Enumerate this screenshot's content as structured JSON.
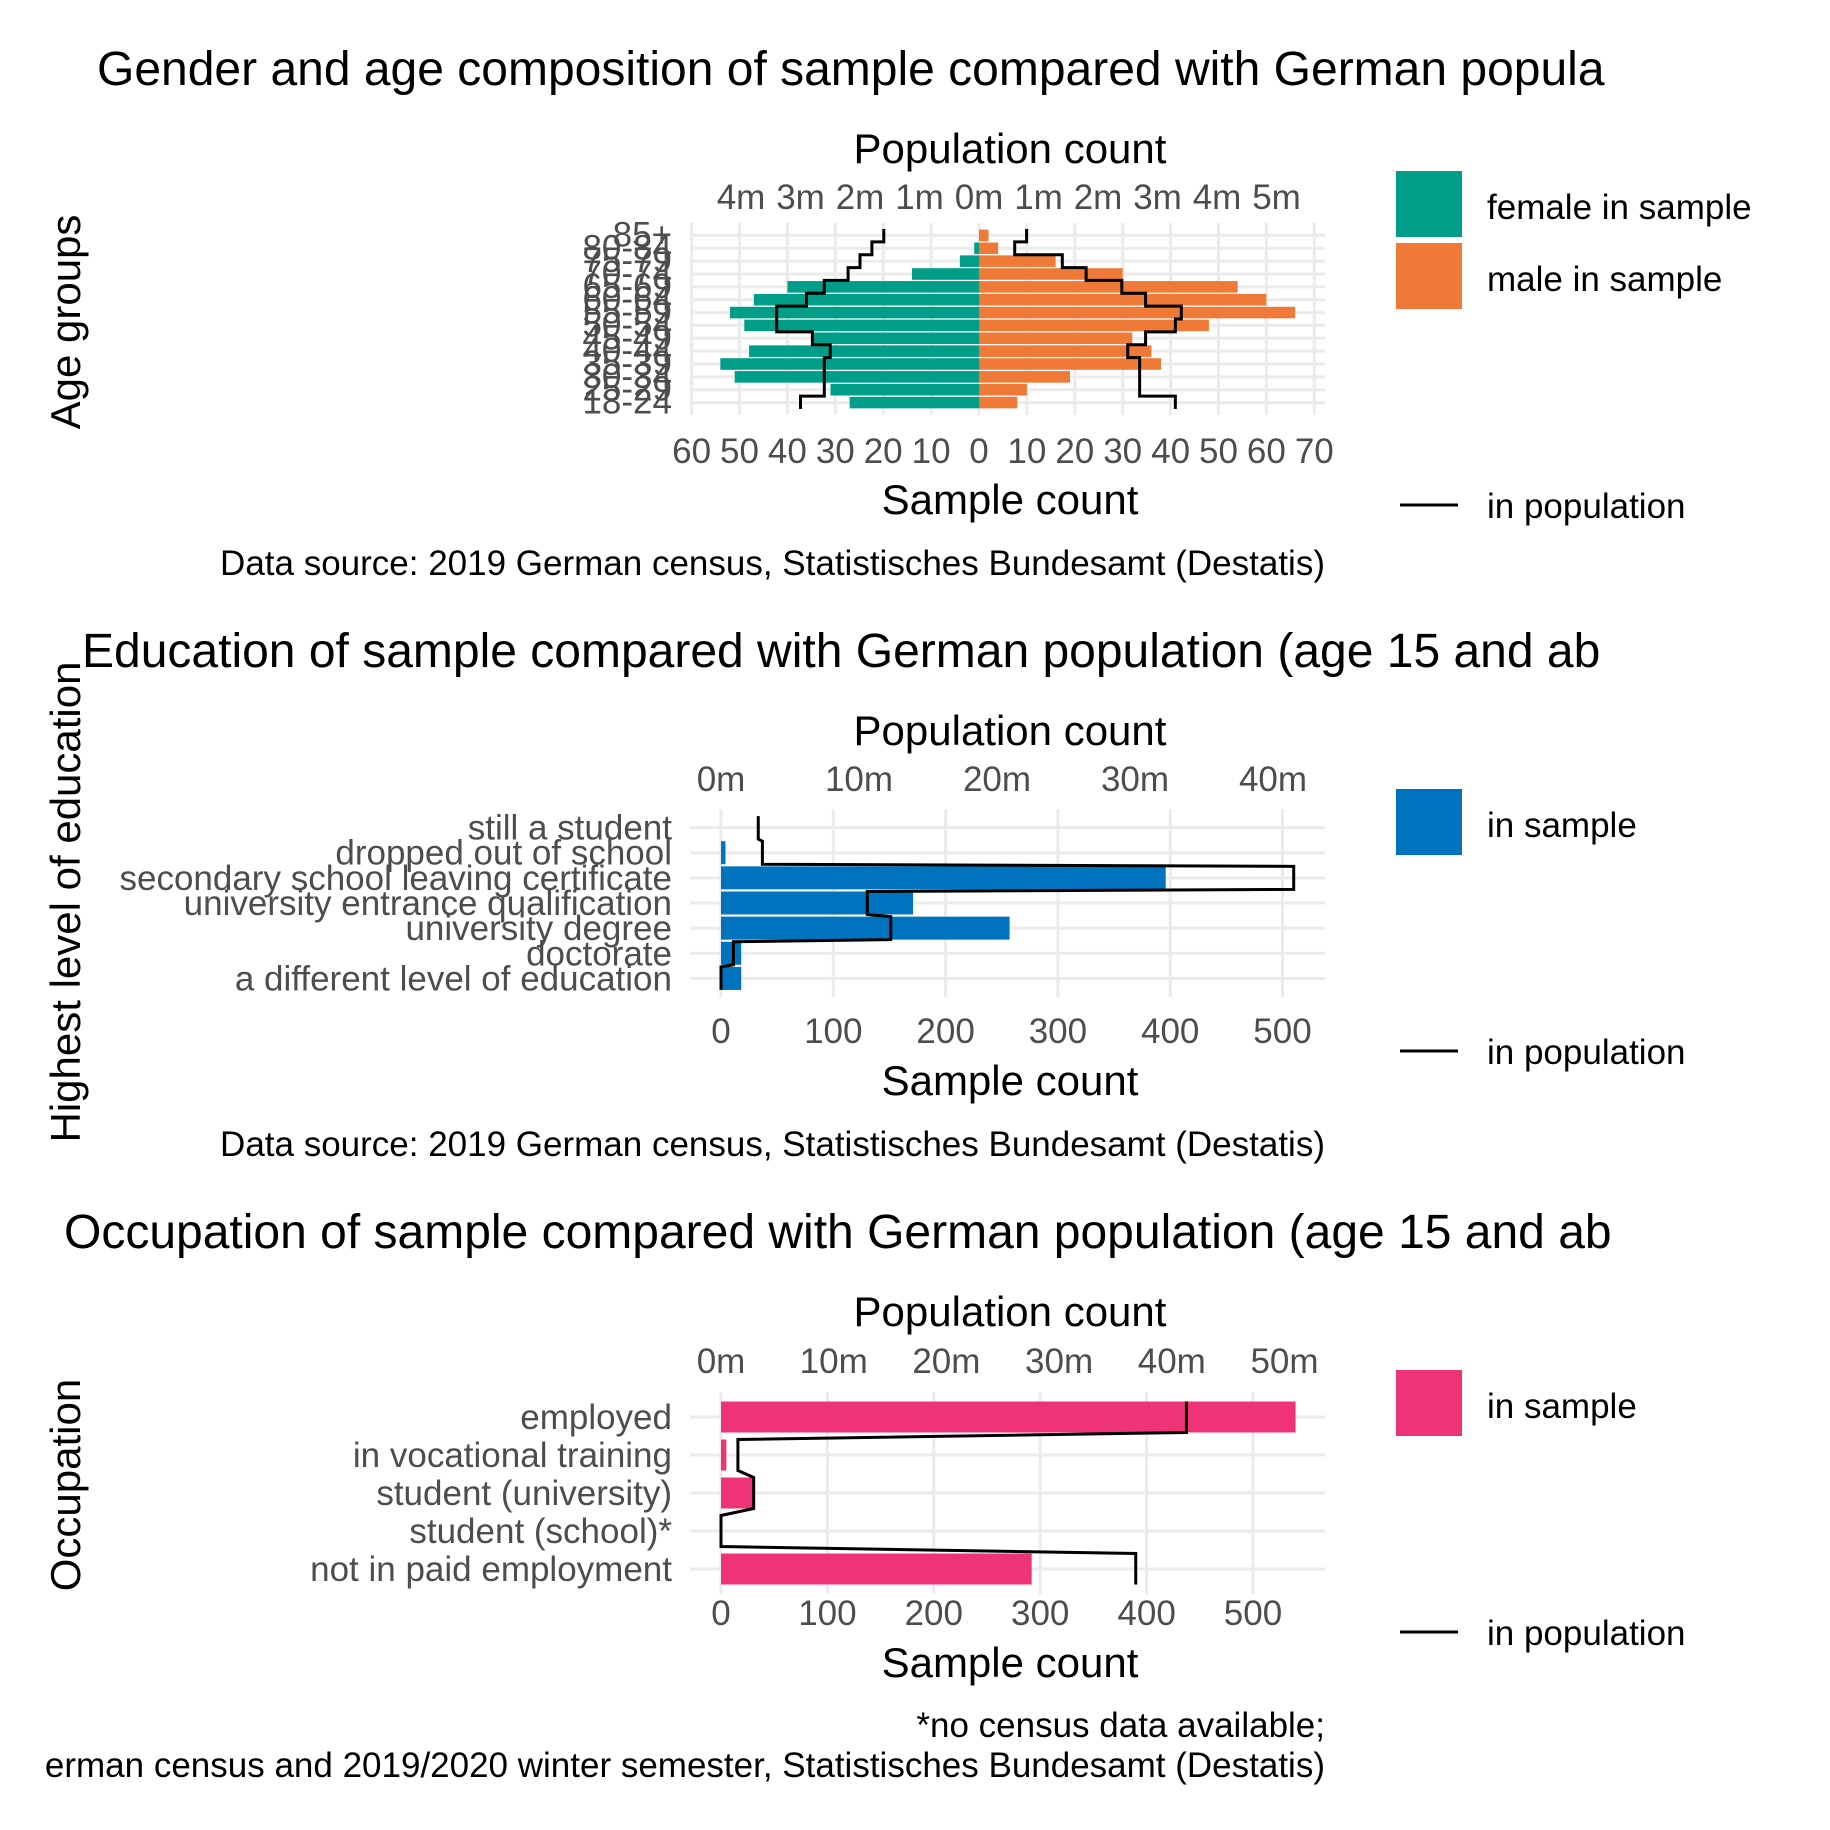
{
  "colors": {
    "female": "#009E89",
    "male": "#EF7A37",
    "education": "#0073BE",
    "occupation": "#EE3377",
    "population_line": "#000000",
    "grid": "#EBEBEB",
    "tick_text": "#4D4D4D"
  },
  "chart_data": [
    {
      "type": "bar",
      "orientation": "horizontal",
      "layout": "population pyramid",
      "title": "Gender and age composition of sample compared with German popula",
      "ylabel": "Age groups",
      "xlabel_bottom": "Sample count",
      "xlabel_top": "Population count",
      "categories": [
        "18-24",
        "25-29",
        "30-34",
        "35-39",
        "40-44",
        "45-49",
        "50-54",
        "55-59",
        "60-64",
        "65-69",
        "70-74",
        "75-79",
        "80-84",
        "85+"
      ],
      "series": [
        {
          "name": "female in sample",
          "side": "left",
          "values": [
            27,
            31,
            51,
            54,
            48,
            35,
            49,
            52,
            47,
            40,
            14,
            4,
            1,
            0
          ]
        },
        {
          "name": "male in sample",
          "side": "right",
          "values": [
            8,
            10,
            19,
            38,
            36,
            32,
            48,
            66,
            60,
            54,
            30,
            16,
            4,
            2
          ]
        }
      ],
      "population_line": {
        "name": "in population",
        "unit": "millions",
        "female": [
          3.0,
          2.6,
          2.6,
          2.6,
          2.5,
          2.8,
          3.4,
          3.4,
          2.9,
          2.6,
          2.2,
          2.0,
          1.8,
          1.6
        ],
        "male": [
          3.3,
          2.7,
          2.7,
          2.7,
          2.5,
          2.8,
          3.3,
          3.4,
          2.8,
          2.4,
          1.8,
          1.4,
          0.6,
          0.8
        ]
      },
      "bottom_axis": {
        "ticks": [
          "60",
          "50",
          "40",
          "30",
          "20",
          "10",
          "0",
          "10",
          "20",
          "30",
          "40",
          "50",
          "60",
          "70"
        ]
      },
      "top_axis": {
        "ticks": [
          "4m",
          "3m",
          "2m",
          "1m",
          "0m",
          "1m",
          "2m",
          "3m",
          "4m",
          "5m"
        ]
      },
      "xlim": [
        -60,
        70
      ],
      "legend": [
        "female in sample",
        "male in sample",
        "in population"
      ],
      "legend_position": "right",
      "caption": "Data source: 2019 German census, Statistisches Bundesamt (Destatis)"
    },
    {
      "type": "bar",
      "orientation": "horizontal",
      "title": "Education of sample compared with German population (age 15 and ab",
      "ylabel": "Highest level of education",
      "xlabel_bottom": "Sample count",
      "xlabel_top": "Population count",
      "categories": [
        "still a student",
        "dropped out of school",
        "secondary school leaving certificate",
        "university entrance qualification",
        "university degree",
        "doctorate",
        "a different level of education"
      ],
      "values": [
        0,
        4,
        396,
        171,
        257,
        18,
        18
      ],
      "population_line": {
        "name": "in population",
        "unit": "millions",
        "values": [
          2.7,
          3.0,
          41.5,
          10.6,
          12.3,
          0.9,
          0.0
        ]
      },
      "bottom_axis": {
        "ticks": [
          "0",
          "100",
          "200",
          "300",
          "400",
          "500"
        ]
      },
      "top_axis": {
        "ticks": [
          "0m",
          "10m",
          "20m",
          "30m",
          "40m"
        ]
      },
      "xlim": [
        0,
        535
      ],
      "legend": [
        "in sample",
        "in population"
      ],
      "legend_position": "right",
      "caption": "Data source: 2019 German census, Statistisches Bundesamt (Destatis)"
    },
    {
      "type": "bar",
      "orientation": "horizontal",
      "title": "Occupation of sample compared with German population (age 15 and ab",
      "ylabel": "Occupation",
      "xlabel_bottom": "Sample count",
      "xlabel_top": "Population count",
      "categories": [
        "employed",
        "in vocational training",
        "student (university)",
        "student (school)*",
        "not in paid employment"
      ],
      "values": [
        540,
        5,
        31,
        0,
        292
      ],
      "population_line": {
        "name": "in population",
        "unit": "millions",
        "values": [
          41.3,
          1.5,
          2.9,
          0.0,
          36.8
        ]
      },
      "bottom_axis": {
        "ticks": [
          "0",
          "100",
          "200",
          "300",
          "400",
          "500"
        ]
      },
      "top_axis": {
        "ticks": [
          "0m",
          "10m",
          "20m",
          "30m",
          "40m",
          "50m"
        ]
      },
      "xlim": [
        0,
        555
      ],
      "legend": [
        "in sample",
        "in population"
      ],
      "legend_position": "right",
      "caption_lines": [
        "*no census data available;",
        "erman census and 2019/2020 winter semester, Statistisches Bundesamt (Destatis)"
      ]
    }
  ]
}
